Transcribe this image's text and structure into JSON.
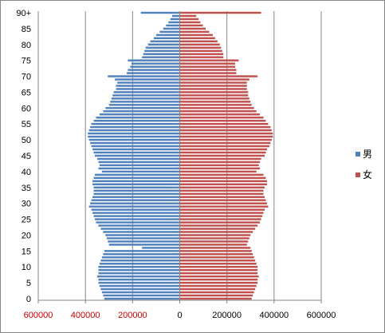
{
  "chart_data": {
    "type": "bar",
    "orientation": "horizontal",
    "title": "",
    "xlabel": "",
    "ylabel": "",
    "categories": [
      "0",
      "1",
      "2",
      "3",
      "4",
      "5",
      "6",
      "7",
      "8",
      "9",
      "10",
      "11",
      "12",
      "13",
      "14",
      "15",
      "16",
      "17",
      "18",
      "19",
      "20",
      "21",
      "22",
      "23",
      "24",
      "25",
      "26",
      "27",
      "28",
      "29",
      "30",
      "31",
      "32",
      "33",
      "34",
      "35",
      "36",
      "37",
      "38",
      "39",
      "40",
      "41",
      "42",
      "43",
      "44",
      "45",
      "46",
      "47",
      "48",
      "49",
      "50",
      "51",
      "52",
      "53",
      "54",
      "55",
      "56",
      "57",
      "58",
      "59",
      "60",
      "61",
      "62",
      "63",
      "64",
      "65",
      "66",
      "67",
      "68",
      "69",
      "70",
      "71",
      "72",
      "73",
      "74",
      "75",
      "76",
      "77",
      "78",
      "79",
      "80",
      "81",
      "82",
      "83",
      "84",
      "85",
      "86",
      "87",
      "88",
      "89",
      "90+"
    ],
    "y_tick_labels": [
      "0",
      "5",
      "10",
      "15",
      "20",
      "25",
      "30",
      "35",
      "40",
      "45",
      "50",
      "55",
      "60",
      "65",
      "70",
      "75",
      "80",
      "85",
      "90+"
    ],
    "x_tick_values": [
      -600000,
      -400000,
      -200000,
      0,
      200000,
      400000,
      600000
    ],
    "x_tick_labels": [
      "600000",
      "400000",
      "200000",
      "0",
      "200000",
      "400000",
      "600000"
    ],
    "xlim": [
      -600000,
      600000
    ],
    "grid": true,
    "legend_position": "right",
    "series": [
      {
        "name": "男",
        "color": "#4f81bd",
        "values": [
          -320000,
          -325000,
          -330000,
          -335000,
          -340000,
          -345000,
          -345000,
          -350000,
          -345000,
          -345000,
          -345000,
          -340000,
          -335000,
          -330000,
          -325000,
          -320000,
          -160000,
          -300000,
          -305000,
          -310000,
          -315000,
          -325000,
          -335000,
          -345000,
          -355000,
          -360000,
          -365000,
          -370000,
          -375000,
          -385000,
          -380000,
          -375000,
          -370000,
          -365000,
          -365000,
          -365000,
          -370000,
          -370000,
          -365000,
          -360000,
          -330000,
          -345000,
          -340000,
          -345000,
          -350000,
          -360000,
          -365000,
          -370000,
          -375000,
          -380000,
          -385000,
          -390000,
          -390000,
          -385000,
          -380000,
          -375000,
          -365000,
          -355000,
          -340000,
          -325000,
          -315000,
          -300000,
          -295000,
          -290000,
          -285000,
          -280000,
          -270000,
          -270000,
          -265000,
          -275000,
          -305000,
          -225000,
          -220000,
          -210000,
          -205000,
          -220000,
          -160000,
          -155000,
          -150000,
          -145000,
          -135000,
          -125000,
          -110000,
          -100000,
          -85000,
          -70000,
          -58000,
          -48000,
          -40000,
          -32000,
          -165000
        ]
      },
      {
        "name": "女",
        "color": "#c0504d",
        "values": [
          305000,
          310000,
          315000,
          320000,
          325000,
          330000,
          330000,
          335000,
          330000,
          330000,
          330000,
          325000,
          320000,
          315000,
          310000,
          305000,
          300000,
          285000,
          290000,
          295000,
          300000,
          310000,
          320000,
          330000,
          340000,
          345000,
          350000,
          355000,
          360000,
          375000,
          370000,
          365000,
          360000,
          355000,
          355000,
          360000,
          370000,
          370000,
          365000,
          355000,
          325000,
          340000,
          335000,
          340000,
          345000,
          360000,
          365000,
          370000,
          380000,
          385000,
          390000,
          395000,
          395000,
          390000,
          385000,
          375000,
          365000,
          355000,
          340000,
          325000,
          315000,
          305000,
          300000,
          295000,
          290000,
          290000,
          285000,
          285000,
          285000,
          295000,
          330000,
          240000,
          240000,
          235000,
          235000,
          250000,
          185000,
          185000,
          180000,
          175000,
          170000,
          160000,
          150000,
          140000,
          125000,
          110000,
          98000,
          88000,
          80000,
          70000,
          345000
        ]
      }
    ]
  }
}
